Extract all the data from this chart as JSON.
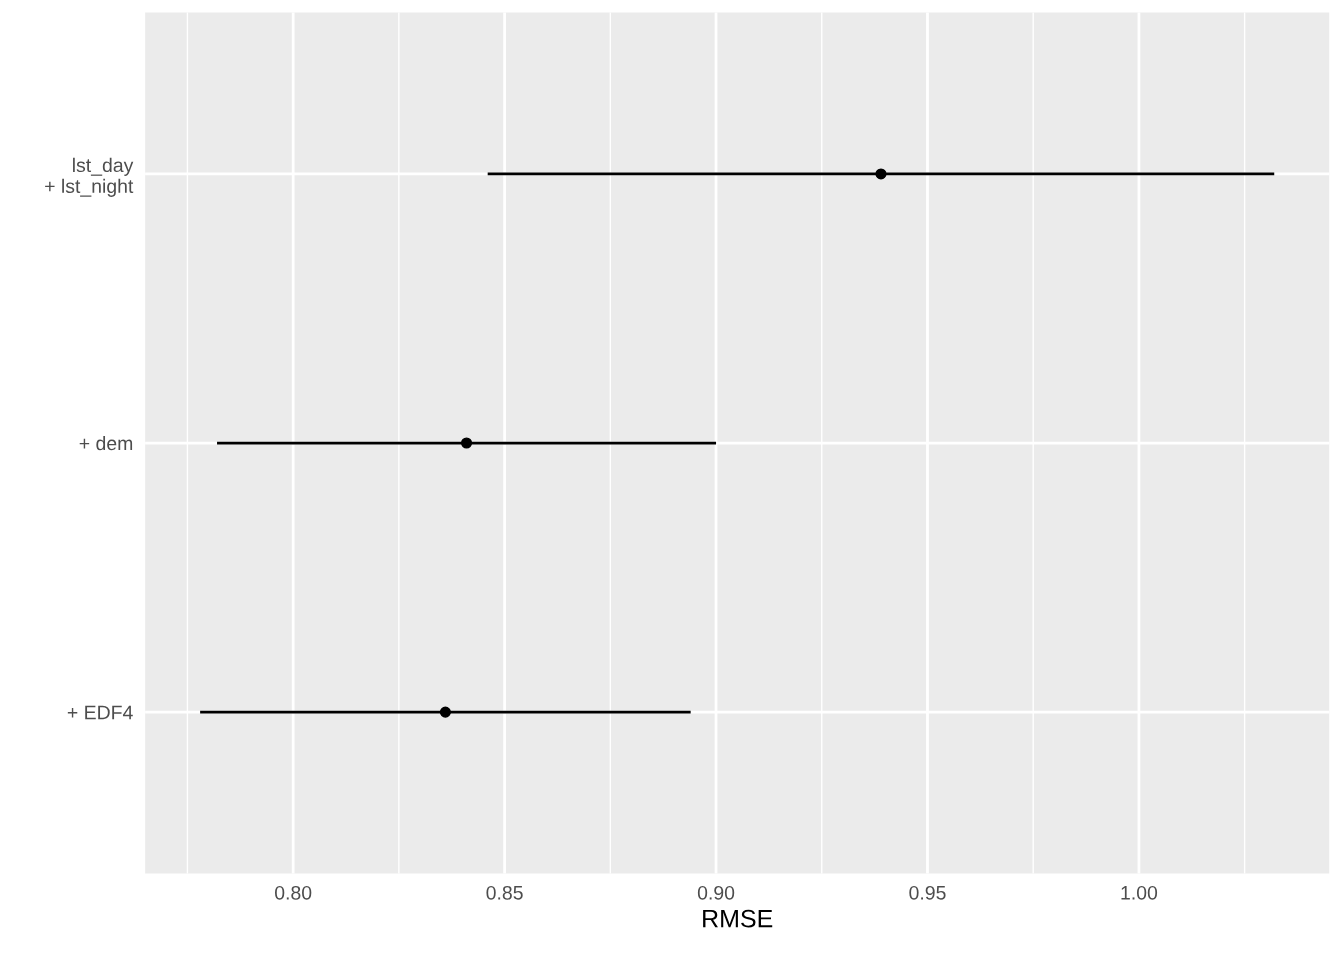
{
  "chart_data": {
    "type": "scatter",
    "orientation": "horizontal",
    "xlabel": "RMSE",
    "categories": [
      "lst_day\n+ lst_night",
      "+ dem",
      "+ EDF4"
    ],
    "values": [
      0.939,
      0.841,
      0.836
    ],
    "errors": [
      [
        0.846,
        1.032
      ],
      [
        0.782,
        0.9
      ],
      [
        0.778,
        0.894
      ]
    ],
    "color": "#000000",
    "marker": "circle",
    "xlim": [
      0.765,
      1.045
    ],
    "xticks": [
      {
        "value": 0.775,
        "label": null
      },
      {
        "value": 0.8,
        "label": "0.80"
      },
      {
        "value": 0.825,
        "label": null
      },
      {
        "value": 0.85,
        "label": "0.85"
      },
      {
        "value": 0.875,
        "label": null
      },
      {
        "value": 0.9,
        "label": "0.90"
      },
      {
        "value": 0.925,
        "label": null
      },
      {
        "value": 0.95,
        "label": "0.95"
      },
      {
        "value": 0.975,
        "label": null
      },
      {
        "value": 1.0,
        "label": "1.00"
      },
      {
        "value": 1.025,
        "label": null
      }
    ],
    "grid": true
  }
}
